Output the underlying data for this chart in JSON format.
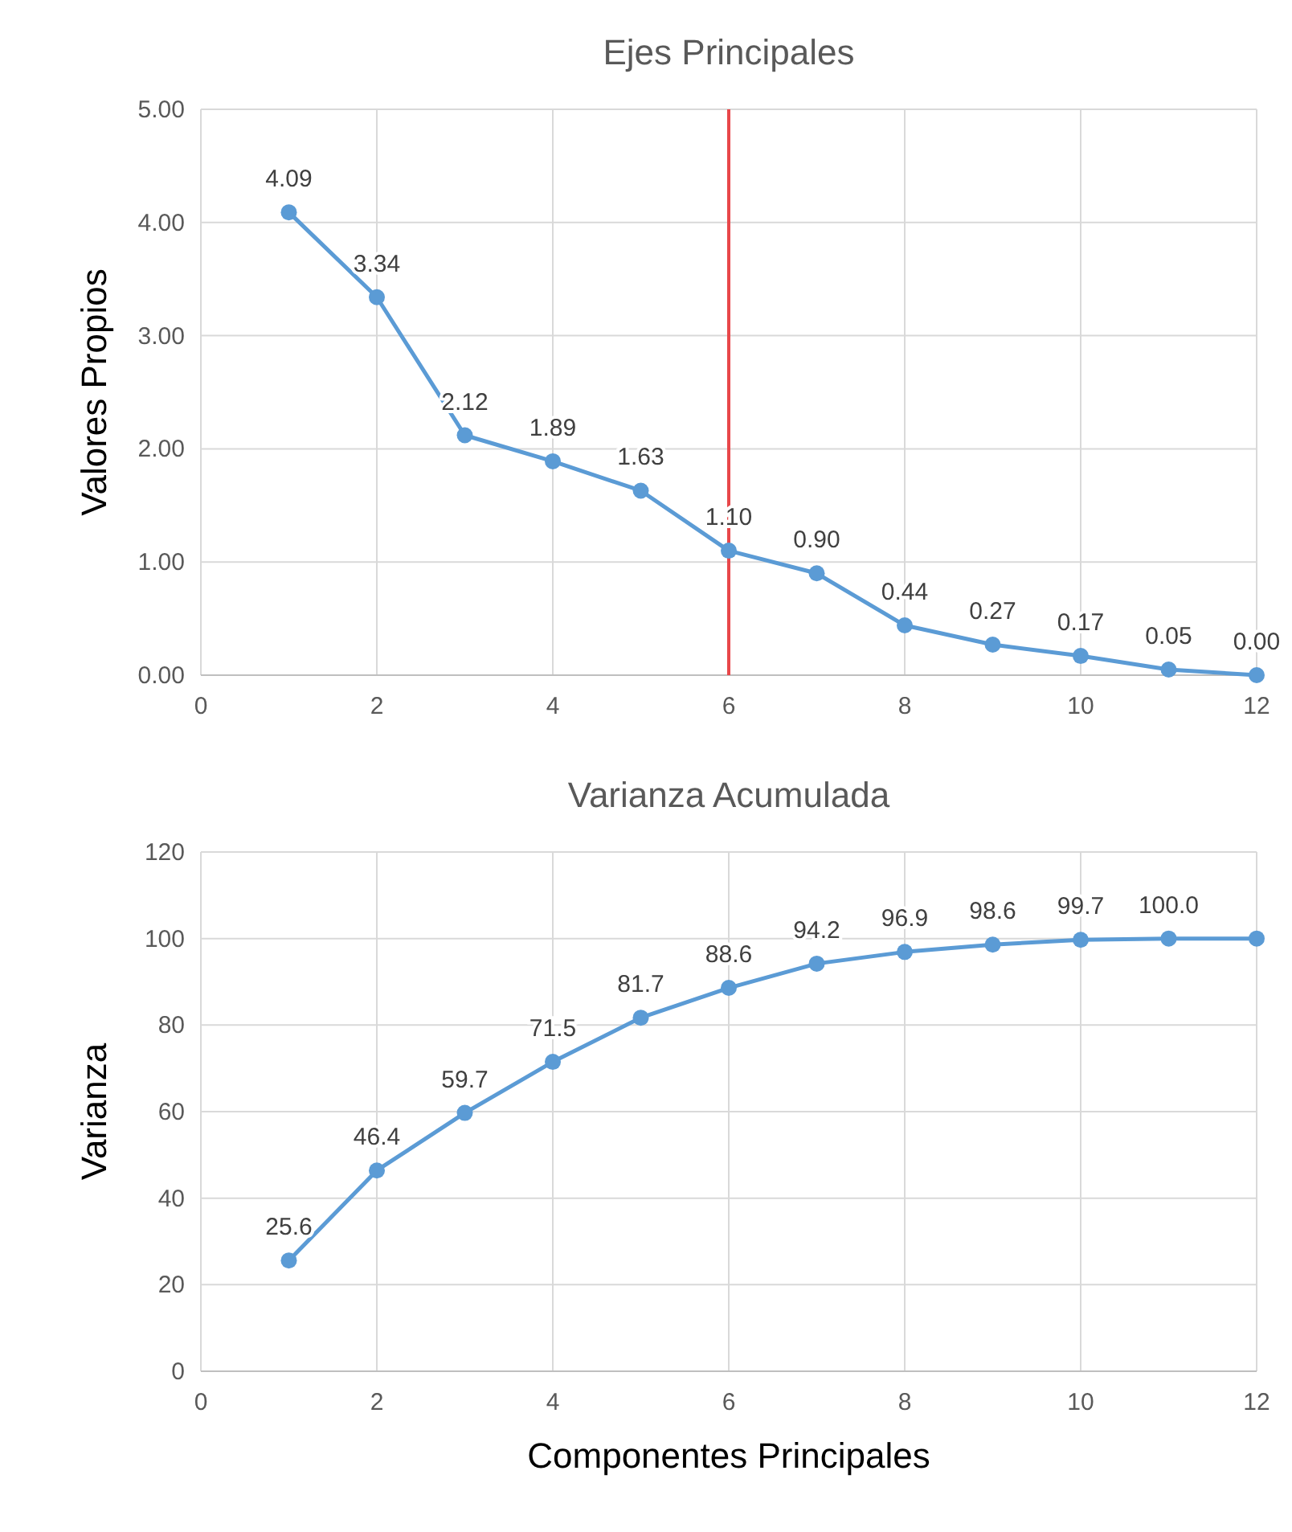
{
  "chart_data": [
    {
      "type": "line",
      "title": "Ejes Principales",
      "ylabel": "Valores Propios",
      "x": [
        1,
        2,
        3,
        4,
        5,
        6,
        7,
        8,
        9,
        10,
        11,
        12
      ],
      "series": [
        {
          "color": "#5b9bd5",
          "values": [
            4.09,
            3.34,
            2.12,
            1.89,
            1.63,
            1.1,
            0.9,
            0.44,
            0.27,
            0.17,
            0.05,
            0.0
          ],
          "value_labels": [
            "4.09",
            "3.34",
            "2.12",
            "1.89",
            "1.63",
            "1.10",
            "0.90",
            "0.44",
            "0.27",
            "0.17",
            "0.05",
            "0.00"
          ]
        }
      ],
      "xlim": [
        0,
        12
      ],
      "xticks": [
        0,
        2,
        4,
        6,
        8,
        10,
        12
      ],
      "ylim": [
        0,
        5
      ],
      "yticks": [
        {
          "value": 0,
          "label": "0.00"
        },
        {
          "value": 1,
          "label": "1.00"
        },
        {
          "value": 2,
          "label": "2.00"
        },
        {
          "value": 3,
          "label": "3.00"
        },
        {
          "value": 4,
          "label": "4.00"
        },
        {
          "value": 5,
          "label": "5.00"
        }
      ],
      "ref_lines": [
        {
          "axis": "x",
          "value": 6,
          "color": "#e8474a"
        }
      ],
      "grid": true,
      "marker": "circle",
      "line_style": "solid"
    },
    {
      "type": "line",
      "title": "Varianza Acumulada",
      "xlabel": "Componentes Principales",
      "ylabel": "Varianza",
      "x": [
        1,
        2,
        3,
        4,
        5,
        6,
        7,
        8,
        9,
        10,
        11,
        12
      ],
      "series": [
        {
          "color": "#5b9bd5",
          "values": [
            25.6,
            46.4,
            59.7,
            71.5,
            81.7,
            88.6,
            94.2,
            96.9,
            98.6,
            99.7,
            100.0,
            100
          ],
          "value_labels": [
            "25.6",
            "46.4",
            "59.7",
            "71.5",
            "81.7",
            "88.6",
            "94.2",
            "96.9",
            "98.6",
            "99.7",
            "100.0",
            null
          ]
        }
      ],
      "xlim": [
        0,
        12
      ],
      "xticks": [
        0,
        2,
        4,
        6,
        8,
        10,
        12
      ],
      "ylim": [
        0,
        120
      ],
      "yticks": [
        0,
        20,
        40,
        60,
        80,
        100,
        120
      ],
      "grid": true,
      "marker": "circle",
      "line_style": "solid"
    }
  ]
}
